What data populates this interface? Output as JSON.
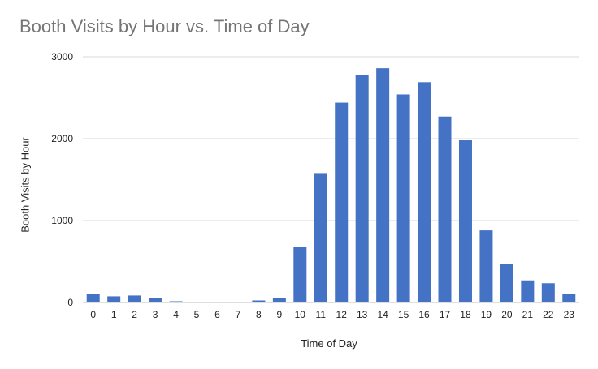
{
  "chart_data": {
    "type": "bar",
    "title": "Booth Visits by Hour vs. Time of Day",
    "xlabel": "Time of Day",
    "ylabel": "Booth Visits by Hour",
    "categories": [
      "0",
      "1",
      "2",
      "3",
      "4",
      "5",
      "6",
      "7",
      "8",
      "9",
      "10",
      "11",
      "12",
      "13",
      "14",
      "15",
      "16",
      "17",
      "18",
      "19",
      "20",
      "21",
      "22",
      "23"
    ],
    "series": [
      {
        "values": [
          100,
          75,
          85,
          50,
          15,
          0,
          0,
          0,
          25,
          50,
          680,
          1580,
          2440,
          2780,
          2860,
          2540,
          2690,
          2270,
          1980,
          880,
          475,
          270,
          235,
          100
        ]
      }
    ],
    "ylim": [
      0,
      3000
    ],
    "yticks": [
      0,
      1000,
      2000,
      3000
    ],
    "grid": true,
    "legend": "none",
    "colors": {
      "bar": "#4472c4",
      "grid": "#d9d9d9",
      "title": "#757575"
    }
  }
}
